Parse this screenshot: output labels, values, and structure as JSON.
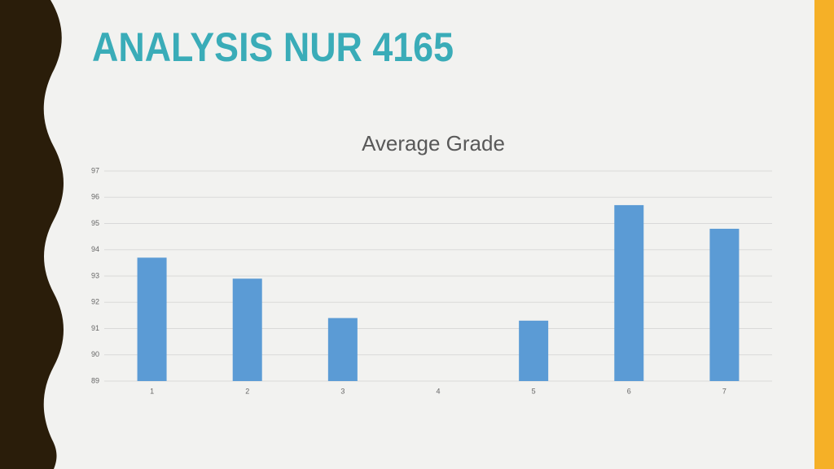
{
  "slide_title": "ANALYSIS NUR 4165",
  "chart_data": {
    "type": "bar",
    "title": "Average Grade",
    "categories": [
      "1",
      "2",
      "3",
      "4",
      "5",
      "6",
      "7"
    ],
    "values": [
      93.7,
      92.9,
      91.4,
      null,
      91.3,
      95.7,
      94.8
    ],
    "color": "#5b9bd5",
    "ylim": [
      89,
      97
    ],
    "yticks": [
      89,
      90,
      91,
      92,
      93,
      94,
      95,
      96,
      97
    ],
    "grid": true
  }
}
